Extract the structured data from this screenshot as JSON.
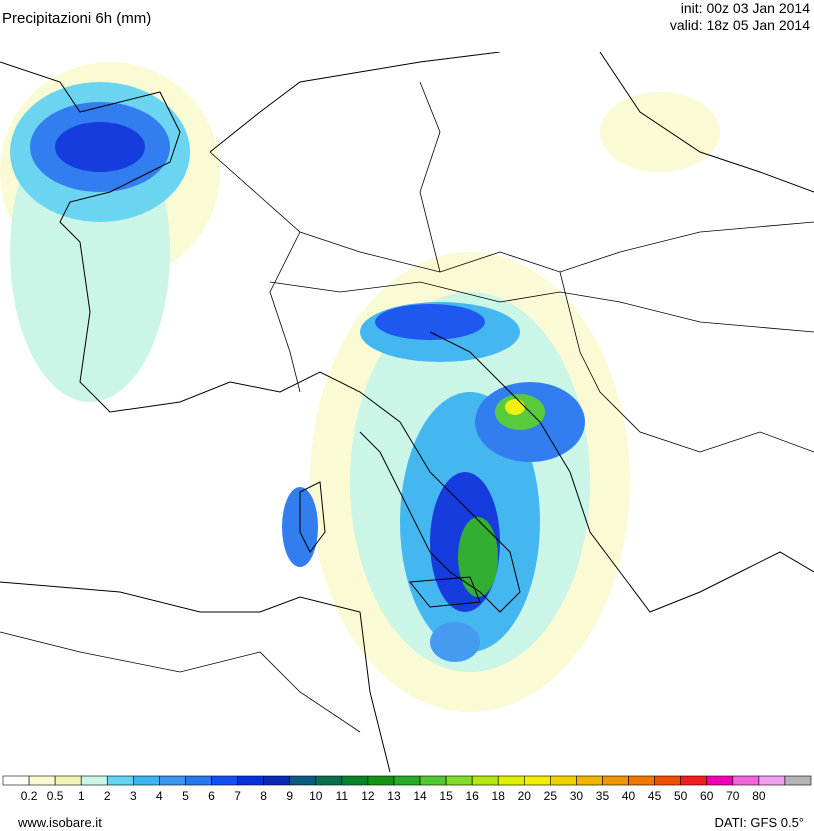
{
  "header": {
    "title": "Precipitazioni 6h (mm)",
    "init": "init: 00z 03 Jan 2014",
    "valid": "valid: 18z 05 Jan 2014"
  },
  "legend": {
    "colors": [
      "#ffffff",
      "#fafad2",
      "#f2f5b4",
      "#c8f5e6",
      "#64d2f0",
      "#3cb4f0",
      "#3c96f0",
      "#2878f0",
      "#1450f0",
      "#0a32dc",
      "#0a28b4",
      "#0a5a82",
      "#0a6e50",
      "#0a8228",
      "#149614",
      "#28aa28",
      "#50c832",
      "#82dc28",
      "#b4e614",
      "#dcf000",
      "#f0f000",
      "#f0d200",
      "#f0b400",
      "#f09600",
      "#f07800",
      "#f05000",
      "#f01e1e",
      "#f000b4",
      "#f064dc",
      "#f0a0f0",
      "#b4b4b4"
    ],
    "labels": [
      "0.2",
      "0.5",
      "1",
      "2",
      "3",
      "4",
      "5",
      "6",
      "7",
      "8",
      "9",
      "10",
      "11",
      "12",
      "13",
      "14",
      "15",
      "16",
      "18",
      "20",
      "25",
      "30",
      "35",
      "40",
      "45",
      "50",
      "60",
      "70",
      "80"
    ]
  },
  "footer": {
    "site": "www.isobare.it",
    "source": "DATI:  GFS  0.5°"
  }
}
